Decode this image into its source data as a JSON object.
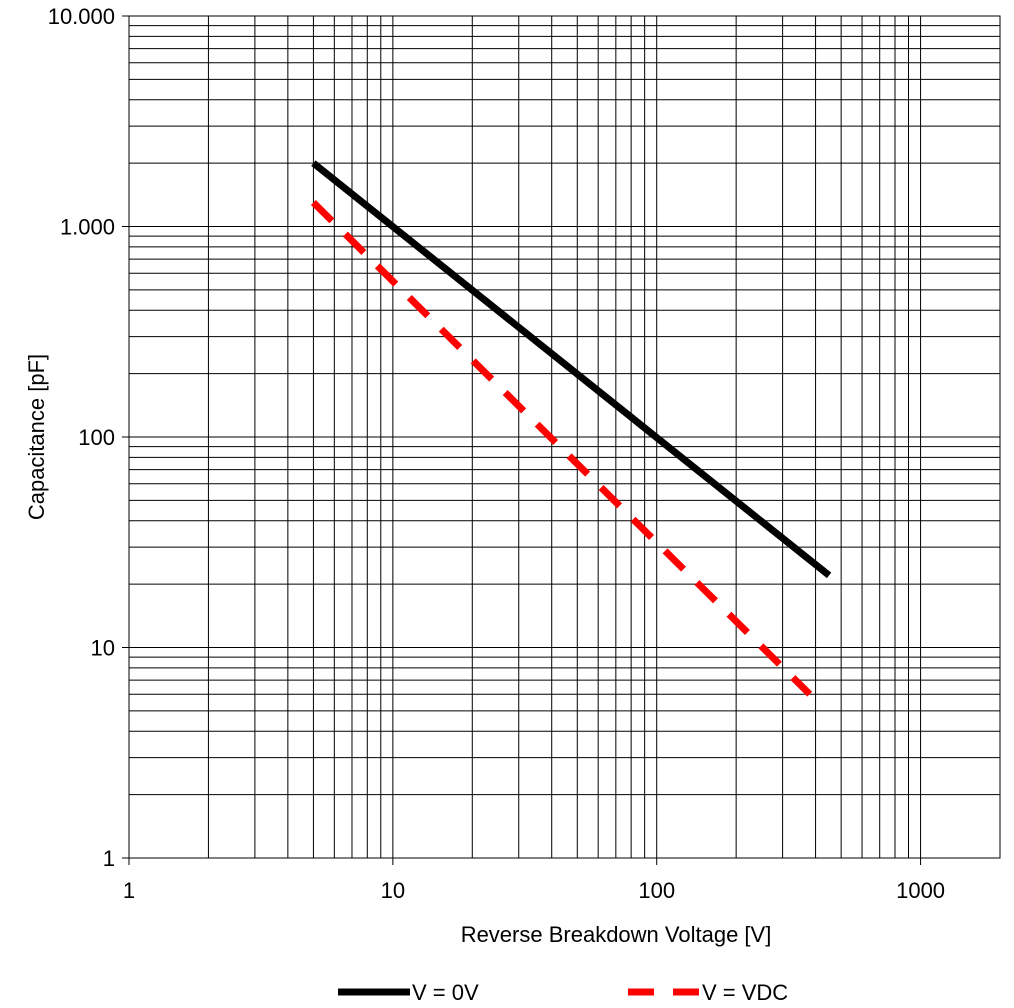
{
  "chart_data": {
    "type": "line",
    "xlabel": "Reverse Breakdown Voltage [V]",
    "ylabel": "Capacitance [pF]",
    "x_scale": "log",
    "y_scale": "log",
    "xlim": [
      1,
      2000
    ],
    "ylim": [
      1,
      10000
    ],
    "grid": true,
    "legend_position": "bottom",
    "x_tick_labels": [
      {
        "value": 1,
        "label": "1"
      },
      {
        "value": 10,
        "label": "10"
      },
      {
        "value": 100,
        "label": "100"
      },
      {
        "value": 1000,
        "label": "1000"
      }
    ],
    "y_tick_labels": [
      {
        "value": 1,
        "label": "1"
      },
      {
        "value": 10,
        "label": "10"
      },
      {
        "value": 100,
        "label": "100"
      },
      {
        "value": 1000,
        "label": "1.000"
      },
      {
        "value": 10000,
        "label": "10.000"
      }
    ],
    "series": [
      {
        "name": "V = 0V",
        "color": "#000000",
        "dash": "solid",
        "x": [
          5,
          450
        ],
        "y": [
          2000,
          22
        ]
      },
      {
        "name": "V = VDC",
        "color": "#ff0000",
        "dash": "dashed",
        "x": [
          5,
          380
        ],
        "y": [
          1300,
          6
        ]
      }
    ]
  }
}
